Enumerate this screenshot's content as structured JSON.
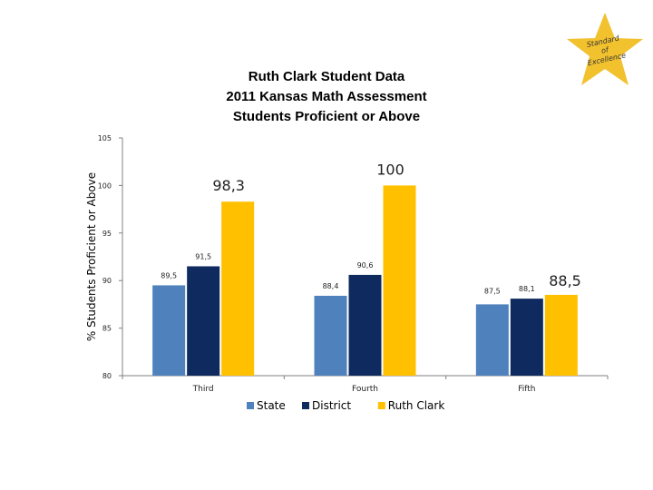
{
  "badge": {
    "text": [
      "Standard",
      "of",
      "Excellence"
    ],
    "color": "#F2C12E"
  },
  "chart_data": {
    "type": "bar",
    "title": [
      "Ruth Clark Student Data",
      "2011 Kansas Math Assessment",
      "Students Proficient or Above"
    ],
    "ylabel": "% Students Proficient or Above",
    "xlabel": "",
    "ylim": [
      80,
      105
    ],
    "yticks": [
      80,
      85,
      90,
      95,
      100,
      105
    ],
    "categories": [
      "Third",
      "Fourth",
      "Fifth"
    ],
    "series": [
      {
        "name": "State",
        "color": "#4F81BD",
        "values": [
          89.5,
          88.4,
          87.5
        ],
        "labels": [
          "89,5",
          "88,4",
          "87,5"
        ]
      },
      {
        "name": "District",
        "color": "#0E2A5E",
        "values": [
          91.5,
          90.6,
          88.1
        ],
        "labels": [
          "91,5",
          "90,6",
          "88,1"
        ]
      },
      {
        "name": "Ruth Clark",
        "color": "#FFC000",
        "values": [
          98.3,
          100,
          88.5
        ],
        "labels": [
          "98,3",
          "100",
          "88,5"
        ]
      }
    ],
    "grid": false,
    "legend": "bottom"
  }
}
